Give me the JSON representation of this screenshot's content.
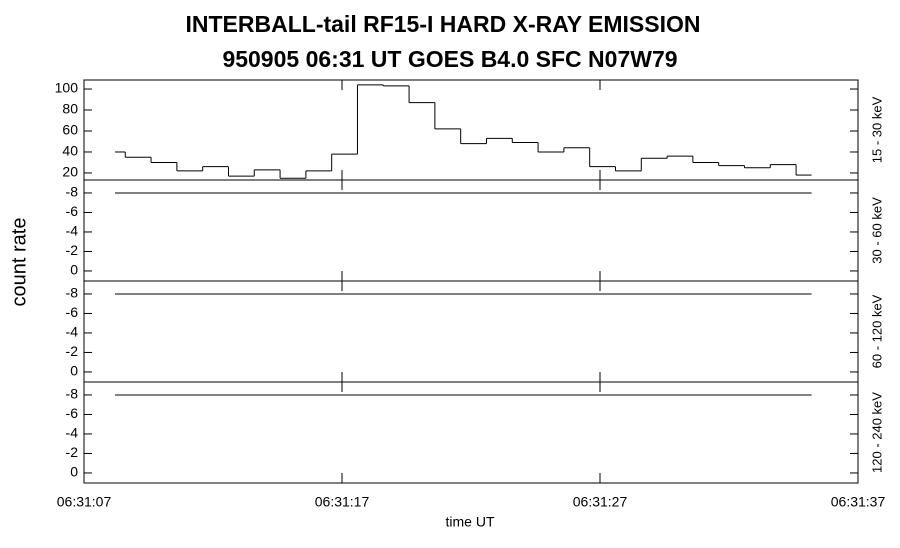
{
  "title": "INTERBALL-tail  RF15-I  HARD  X-RAY  EMISSION",
  "subtitle": "950905   06:31 UT   GOES B4.0  SFC  N07W79",
  "ylabel": "count rate",
  "chart_data": [
    {
      "type": "histogram",
      "channel": "15 - 30 keV",
      "bins": [
        8.2,
        8.6,
        9.6,
        10.6,
        11.6,
        12.6,
        13.6,
        14.6,
        15.6,
        16.6,
        17.6,
        18.6,
        19.6,
        20.6,
        21.6,
        22.6,
        23.6,
        24.6,
        25.6,
        26.6,
        27.6,
        28.6,
        29.6,
        30.6,
        31.6,
        32.6,
        33.6,
        34.6,
        35.2
      ],
      "counts": [
        40,
        35,
        30,
        22,
        26,
        17,
        23,
        15,
        22,
        38,
        104,
        103,
        87,
        62,
        48,
        53,
        49,
        40,
        44,
        26,
        22,
        34,
        36,
        30,
        27,
        25,
        28,
        18
      ],
      "ylim": [
        13.3,
        108.6
      ],
      "yticks": [
        20,
        40,
        60,
        80,
        100
      ]
    },
    {
      "type": "line",
      "channel": "30 - 60 keV",
      "x": [
        8.2,
        35.2
      ],
      "values": [
        -8,
        -8
      ],
      "ylim": [
        1.03,
        -9.33
      ],
      "yticks": [
        -8,
        -6,
        -4,
        -2,
        0
      ]
    },
    {
      "type": "line",
      "channel": "60 - 120 keV",
      "x": [
        8.2,
        35.2
      ],
      "values": [
        -8,
        -8
      ],
      "ylim": [
        1.03,
        -9.33
      ],
      "yticks": [
        -8,
        -6,
        -4,
        -2,
        0
      ]
    },
    {
      "type": "line",
      "channel": "120 - 240 keV",
      "x": [
        8.2,
        35.2
      ],
      "values": [
        -8,
        -8
      ],
      "ylim": [
        1.03,
        -9.33
      ],
      "yticks": [
        -8,
        -6,
        -4,
        -2,
        0
      ],
      "xlabel": "time UT",
      "xlim": [
        7,
        37
      ],
      "xticks": [
        {
          "value": 7,
          "label": "06:31:07"
        },
        {
          "value": 17,
          "label": "06:31:17"
        },
        {
          "value": 27,
          "label": "06:31:27"
        },
        {
          "value": 37,
          "label": "06:31:37"
        }
      ]
    }
  ]
}
